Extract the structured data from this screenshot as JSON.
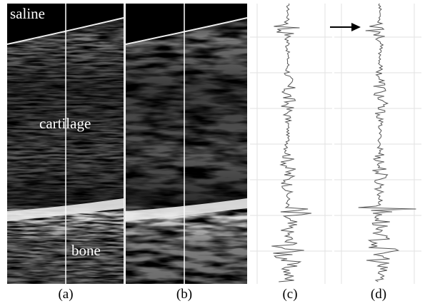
{
  "panels": [
    {
      "label": "(a)",
      "annotations": [
        "saline",
        "cartilage",
        "bone"
      ]
    },
    {
      "label": "(b)"
    },
    {
      "label": "(c)"
    },
    {
      "label": "(d)"
    }
  ]
}
